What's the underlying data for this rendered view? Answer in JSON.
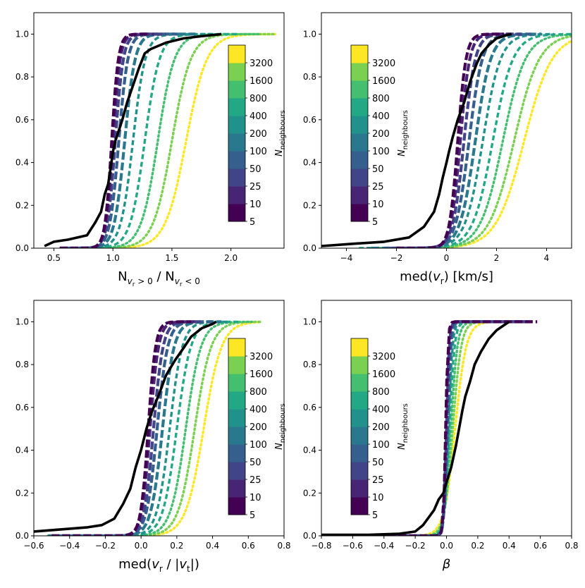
{
  "colorbar": {
    "label_main": "N",
    "label_sub": "neighbours",
    "levels": [
      "5",
      "10",
      "25",
      "50",
      "100",
      "200",
      "400",
      "800",
      "1600",
      "3200"
    ],
    "colors": [
      "#440154",
      "#482475",
      "#414487",
      "#355f8d",
      "#2a788e",
      "#21918c",
      "#22a884",
      "#44bf70",
      "#7ad151",
      "#fde725"
    ]
  },
  "chart_data": [
    {
      "id": "p1",
      "type": "line",
      "title": "",
      "xlabel": "N",
      "xlabel_tail": " / N",
      "xlabel_sub1": "v",
      "xlabel_sub1_r": "r",
      "xlabel_sub1_rest": " > 0",
      "xlabel_sub2": "v",
      "xlabel_sub2_r": "r",
      "xlabel_sub2_rest": " < 0",
      "xlim": [
        0.33,
        2.45
      ],
      "ylim": [
        0.0,
        1.1
      ],
      "xticks": [
        0.5,
        1.0,
        1.5,
        2.0
      ],
      "xtick_labels": [
        "0.5",
        "1.0",
        "1.5",
        "2.0"
      ],
      "yticks": [
        0.0,
        0.2,
        0.4,
        0.6,
        0.8,
        1.0
      ],
      "ytick_labels": [
        "0.0",
        "0.2",
        "0.4",
        "0.6",
        "0.8",
        "1.0"
      ],
      "colorbar_position": "upper right",
      "observed": {
        "x": [
          0.42,
          0.5,
          0.62,
          0.78,
          0.85,
          0.9,
          0.93,
          0.96,
          0.98,
          1.0,
          1.02,
          1.05,
          1.08,
          1.12,
          1.17,
          1.22,
          1.27,
          1.32,
          1.45,
          1.6,
          1.75,
          1.92
        ],
        "y": [
          0.01,
          0.03,
          0.04,
          0.06,
          0.12,
          0.17,
          0.25,
          0.3,
          0.37,
          0.45,
          0.5,
          0.55,
          0.6,
          0.68,
          0.76,
          0.84,
          0.91,
          0.93,
          0.96,
          0.98,
          0.99,
          1.0
        ]
      },
      "series": [
        {
          "name": "5",
          "median": 0.99,
          "width": 0.048,
          "xmin": 0.55,
          "xmax": 1.3
        },
        {
          "name": "10",
          "median": 1.0,
          "width": 0.052,
          "xmin": 0.55,
          "xmax": 1.35
        },
        {
          "name": "25",
          "median": 1.02,
          "width": 0.058,
          "xmin": 0.55,
          "xmax": 1.45
        },
        {
          "name": "50",
          "median": 1.05,
          "width": 0.065,
          "xmin": 0.58,
          "xmax": 1.55
        },
        {
          "name": "100",
          "median": 1.1,
          "width": 0.075,
          "xmin": 0.6,
          "xmax": 1.7
        },
        {
          "name": "200",
          "median": 1.17,
          "width": 0.088,
          "xmin": 0.6,
          "xmax": 1.85
        },
        {
          "name": "400",
          "median": 1.27,
          "width": 0.105,
          "xmin": 0.62,
          "xmax": 2.05
        },
        {
          "name": "800",
          "median": 1.38,
          "width": 0.12,
          "xmin": 0.65,
          "xmax": 2.25
        },
        {
          "name": "1600",
          "median": 1.5,
          "width": 0.135,
          "xmin": 0.7,
          "xmax": 2.38
        },
        {
          "name": "3200",
          "median": 1.62,
          "width": 0.15,
          "xmin": 0.75,
          "xmax": 2.38
        }
      ]
    },
    {
      "id": "p2",
      "type": "line",
      "title": "",
      "xlabel": "med(",
      "xlabel_var": "v",
      "xlabel_sub": "r",
      "xlabel_tail": ") [km/s]",
      "xlim": [
        -5.0,
        5.0
      ],
      "ylim": [
        0.0,
        1.1
      ],
      "xticks": [
        -4,
        -2,
        0,
        2,
        4
      ],
      "xtick_labels": [
        "−4",
        "−2",
        "0",
        "2",
        "4"
      ],
      "yticks": [
        0.0,
        0.2,
        0.4,
        0.6,
        0.8,
        1.0
      ],
      "ytick_labels": [
        "0.0",
        "0.2",
        "0.4",
        "0.6",
        "0.8",
        "1.0"
      ],
      "colorbar_position": "upper left",
      "observed": {
        "x": [
          -5.0,
          -3.8,
          -2.5,
          -1.5,
          -0.9,
          -0.5,
          -0.3,
          -0.15,
          0.0,
          0.1,
          0.25,
          0.45,
          0.7,
          0.95,
          1.2,
          1.4,
          1.7,
          2.0,
          2.4,
          2.6
        ],
        "y": [
          0.01,
          0.02,
          0.03,
          0.05,
          0.1,
          0.17,
          0.25,
          0.33,
          0.4,
          0.45,
          0.52,
          0.6,
          0.68,
          0.78,
          0.86,
          0.91,
          0.95,
          0.98,
          0.995,
          1.0
        ]
      },
      "series": [
        {
          "name": "5",
          "median": 0.45,
          "width": 0.28,
          "xmin": -2.0,
          "xmax": 2.3
        },
        {
          "name": "10",
          "median": 0.55,
          "width": 0.32,
          "xmin": -2.0,
          "xmax": 2.6
        },
        {
          "name": "25",
          "median": 0.7,
          "width": 0.38,
          "xmin": -2.2,
          "xmax": 3.0
        },
        {
          "name": "50",
          "median": 0.9,
          "width": 0.45,
          "xmin": -2.5,
          "xmax": 3.4
        },
        {
          "name": "100",
          "median": 1.15,
          "width": 0.52,
          "xmin": -3.0,
          "xmax": 3.8
        },
        {
          "name": "200",
          "median": 1.45,
          "width": 0.6,
          "xmin": -3.2,
          "xmax": 4.3
        },
        {
          "name": "400",
          "median": 1.85,
          "width": 0.68,
          "xmin": -3.5,
          "xmax": 5.0
        },
        {
          "name": "800",
          "median": 2.25,
          "width": 0.76,
          "xmin": -3.0,
          "xmax": 5.0
        },
        {
          "name": "1600",
          "median": 2.7,
          "width": 0.85,
          "xmin": -3.0,
          "xmax": 5.0
        },
        {
          "name": "3200",
          "median": 3.1,
          "width": 0.95,
          "xmin": -2.8,
          "xmax": 5.0
        }
      ]
    },
    {
      "id": "p3",
      "type": "line",
      "title": "",
      "xlabel": "med(",
      "xlabel_var": "v",
      "xlabel_sub": "r",
      "xlabel_mid": " / |",
      "xlabel_var2": "v",
      "xlabel_sub2": "t",
      "xlabel_tail": "|)",
      "xlim": [
        -0.6,
        0.8
      ],
      "ylim": [
        0.0,
        1.1
      ],
      "xticks": [
        -0.6,
        -0.4,
        -0.2,
        0.0,
        0.2,
        0.4,
        0.6,
        0.8
      ],
      "xtick_labels": [
        "−0.6",
        "−0.4",
        "−0.2",
        "0.0",
        "0.2",
        "0.4",
        "0.6",
        "0.8"
      ],
      "yticks": [
        0.0,
        0.2,
        0.4,
        0.6,
        0.8,
        1.0
      ],
      "ytick_labels": [
        "0.0",
        "0.2",
        "0.4",
        "0.6",
        "0.8",
        "1.0"
      ],
      "colorbar_position": "upper right",
      "observed": {
        "x": [
          -0.6,
          -0.45,
          -0.3,
          -0.22,
          -0.15,
          -0.1,
          -0.06,
          -0.03,
          0.0,
          0.03,
          0.06,
          0.1,
          0.14,
          0.19,
          0.24,
          0.28,
          0.34,
          0.4,
          0.42
        ],
        "y": [
          0.02,
          0.03,
          0.04,
          0.05,
          0.08,
          0.15,
          0.22,
          0.32,
          0.4,
          0.5,
          0.58,
          0.66,
          0.75,
          0.82,
          0.88,
          0.93,
          0.97,
          0.99,
          1.0
        ]
      },
      "series": [
        {
          "name": "5",
          "median": 0.04,
          "width": 0.035,
          "xmin": -0.5,
          "xmax": 0.28
        },
        {
          "name": "10",
          "median": 0.05,
          "width": 0.04,
          "xmin": -0.5,
          "xmax": 0.3
        },
        {
          "name": "25",
          "median": 0.07,
          "width": 0.045,
          "xmin": -0.5,
          "xmax": 0.35
        },
        {
          "name": "50",
          "median": 0.09,
          "width": 0.05,
          "xmin": -0.5,
          "xmax": 0.4
        },
        {
          "name": "100",
          "median": 0.12,
          "width": 0.055,
          "xmin": -0.52,
          "xmax": 0.45
        },
        {
          "name": "200",
          "median": 0.16,
          "width": 0.06,
          "xmin": -0.52,
          "xmax": 0.5
        },
        {
          "name": "400",
          "median": 0.2,
          "width": 0.066,
          "xmin": -0.52,
          "xmax": 0.56
        },
        {
          "name": "800",
          "median": 0.25,
          "width": 0.072,
          "xmin": -0.52,
          "xmax": 0.62
        },
        {
          "name": "1600",
          "median": 0.3,
          "width": 0.078,
          "xmin": -0.52,
          "xmax": 0.67
        },
        {
          "name": "3200",
          "median": 0.35,
          "width": 0.085,
          "xmin": -0.52,
          "xmax": 0.67
        }
      ]
    },
    {
      "id": "p4",
      "type": "line",
      "title": "",
      "xlabel": "",
      "xlabel_var": "β",
      "xlim": [
        -0.8,
        0.8
      ],
      "ylim": [
        0.0,
        1.1
      ],
      "xticks": [
        -0.8,
        -0.6,
        -0.4,
        -0.2,
        0.0,
        0.2,
        0.4,
        0.6,
        0.8
      ],
      "xtick_labels": [
        "−0.8",
        "−0.6",
        "−0.4",
        "−0.2",
        "0.0",
        "0.2",
        "0.4",
        "0.6",
        "0.8"
      ],
      "yticks": [
        0.0,
        0.2,
        0.4,
        0.6,
        0.8,
        1.0
      ],
      "ytick_labels": [
        "0.0",
        "0.2",
        "0.4",
        "0.6",
        "0.8",
        "1.0"
      ],
      "colorbar_position": "upper left",
      "observed": {
        "x": [
          -0.8,
          -0.5,
          -0.3,
          -0.2,
          -0.15,
          -0.12,
          -0.08,
          -0.05,
          -0.02,
          0.0,
          0.03,
          0.06,
          0.08,
          0.1,
          0.12,
          0.15,
          0.18,
          0.22,
          0.27,
          0.32,
          0.36,
          0.4
        ],
        "y": [
          0.005,
          0.005,
          0.01,
          0.02,
          0.05,
          0.08,
          0.12,
          0.17,
          0.2,
          0.25,
          0.32,
          0.42,
          0.5,
          0.58,
          0.65,
          0.72,
          0.8,
          0.86,
          0.92,
          0.96,
          0.98,
          1.0
        ]
      },
      "series": [
        {
          "name": "5",
          "median": -0.005,
          "width": 0.012,
          "xmin": -0.78,
          "xmax": 0.58
        },
        {
          "name": "10",
          "median": -0.003,
          "width": 0.013,
          "xmin": -0.78,
          "xmax": 0.55
        },
        {
          "name": "25",
          "median": 0.0,
          "width": 0.014,
          "xmin": -0.75,
          "xmax": 0.52
        },
        {
          "name": "50",
          "median": 0.003,
          "width": 0.016,
          "xmin": -0.75,
          "xmax": 0.5
        },
        {
          "name": "100",
          "median": 0.007,
          "width": 0.018,
          "xmin": -0.75,
          "xmax": 0.48
        },
        {
          "name": "200",
          "median": 0.012,
          "width": 0.022,
          "xmin": -0.72,
          "xmax": 0.46
        },
        {
          "name": "400",
          "median": 0.018,
          "width": 0.028,
          "xmin": -0.7,
          "xmax": 0.44
        },
        {
          "name": "800",
          "median": 0.028,
          "width": 0.035,
          "xmin": -0.7,
          "xmax": 0.42
        },
        {
          "name": "1600",
          "median": 0.04,
          "width": 0.045,
          "xmin": -0.68,
          "xmax": 0.4
        },
        {
          "name": "3200",
          "median": 0.055,
          "width": 0.06,
          "xmin": -0.65,
          "xmax": 0.38
        }
      ]
    }
  ]
}
